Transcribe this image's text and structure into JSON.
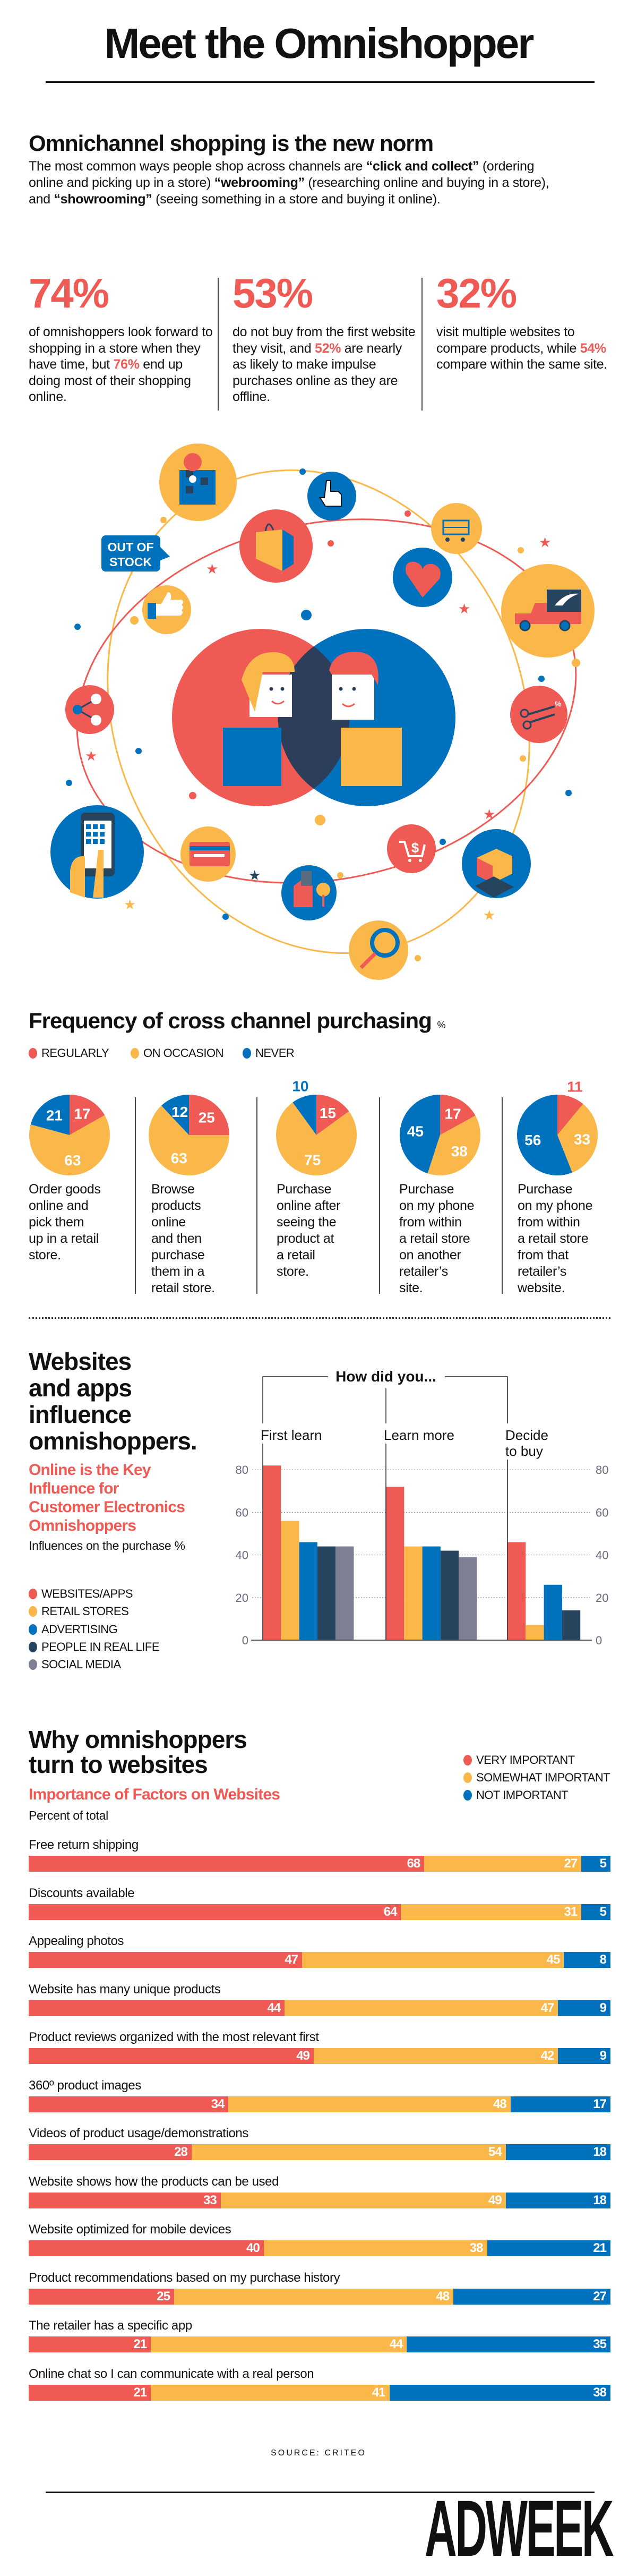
{
  "header": {
    "title": "Meet the Omnishopper",
    "logo": "ADWEEK",
    "source": "SOURCE: CRITEO"
  },
  "colors": {
    "red": "#ef5a55",
    "yellow": "#fbb84a",
    "blue": "#0071bc",
    "navy": "#27445f",
    "gray": "#7e7f92"
  },
  "intro": {
    "heading": "Omnichannel shopping is the new norm",
    "segments": [
      {
        "t": "The most common ways people shop across channels are ",
        "b": false
      },
      {
        "t": "“click and collect”",
        "b": true
      },
      {
        "t": " (ordering online and picking up in a store) ",
        "b": false
      },
      {
        "t": "“webrooming”",
        "b": true
      },
      {
        "t": " (researching online and buying in a store), and ",
        "b": false
      },
      {
        "t": "“showrooming”",
        "b": true
      },
      {
        "t": " (seeing something in a store and buying it online).",
        "b": false
      }
    ]
  },
  "stats": [
    {
      "number": "74%",
      "segments": [
        {
          "t": "of omnishoppers look forward to shopping in a store when they have time, but ",
          "hl": false
        },
        {
          "t": "76%",
          "hl": true
        },
        {
          "t": " end up doing most of their shopping online.",
          "hl": false
        }
      ]
    },
    {
      "number": "53%",
      "segments": [
        {
          "t": "do not buy from the first website they visit, and ",
          "hl": false
        },
        {
          "t": "52%",
          "hl": true
        },
        {
          "t": " are nearly as likely to make impulse purchases online as they are offline.",
          "hl": false
        }
      ]
    },
    {
      "number": "32%",
      "segments": [
        {
          "t": "visit multiple websites to compare products, while ",
          "hl": false
        },
        {
          "t": "54%",
          "hl": true
        },
        {
          "t": " compare within the same site.",
          "hl": false
        }
      ]
    }
  ],
  "illustration": {
    "bubble_line1": "OUT OF",
    "bubble_line2": "STOCK",
    "icons": [
      "map-pin-icon",
      "pointer-hand-icon",
      "shopping-bag-icon",
      "shopping-cart-icon",
      "heart-icon",
      "delivery-truck-icon",
      "thumbs-up-icon",
      "share-icon",
      "coupon-scissors-icon",
      "smartphone-icon",
      "credit-card-icon",
      "store-building-icon",
      "dollar-cart-icon",
      "box-cart-icon",
      "magnifier-icon"
    ]
  },
  "chart_data": [
    {
      "type": "pie",
      "title": "Frequency of cross channel purchasing",
      "unit": "%",
      "series": [
        {
          "name": "REGULARLY",
          "color": "#ef5a55"
        },
        {
          "name": "ON OCCASION",
          "color": "#fbb84a"
        },
        {
          "name": "NEVER",
          "color": "#0071bc"
        }
      ],
      "pies": [
        {
          "caption": "Order goods\nonline and\npick them\nup in a retail\nstore.",
          "values": [
            17,
            63,
            21
          ]
        },
        {
          "caption": "Browse\nproducts\nonline\nand then\npurchase\nthem in a\nretail store.",
          "values": [
            25,
            63,
            12
          ]
        },
        {
          "caption": "Purchase\nonline after\nseeing the\nproduct at\na retail\nstore.",
          "values": [
            15,
            75,
            10
          ]
        },
        {
          "caption": "Purchase\non my phone\nfrom within\na retail store\non another\nretailer’s\nsite.",
          "values": [
            17,
            38,
            45
          ]
        },
        {
          "caption": "Purchase\non my phone\nfrom within\na retail store\nfrom that\nretailer’s\nwebsite.",
          "values": [
            11,
            33,
            56
          ]
        }
      ]
    },
    {
      "type": "bar",
      "title": "Websites\nand apps\ninfluence\nomnishoppers.",
      "subtitle": "Online is the Key\nInfluence for\nCustomer Electronics\nOmnishoppers",
      "ylabel": "Influences on the purchase %",
      "group_title": "How did you...",
      "categories": [
        "First learn",
        "Learn more",
        "Decide\nto buy"
      ],
      "yticks": [
        0,
        20,
        40,
        60,
        80
      ],
      "ylim": [
        0,
        90
      ],
      "grid": true,
      "series": [
        {
          "name": "WEBSITES/APPS",
          "color": "#ef5a55",
          "values": [
            82,
            72,
            46
          ]
        },
        {
          "name": "RETAIL STORES",
          "color": "#fbb84a",
          "values": [
            56,
            44,
            7
          ]
        },
        {
          "name": "ADVERTISING",
          "color": "#0071bc",
          "values": [
            46,
            44,
            26
          ]
        },
        {
          "name": "PEOPLE IN REAL LIFE",
          "color": "#27445f",
          "values": [
            44,
            42,
            14
          ]
        },
        {
          "name": "SOCIAL MEDIA",
          "color": "#7e7f92",
          "values": [
            44,
            39,
            null
          ]
        }
      ]
    },
    {
      "type": "bar",
      "orientation": "horizontal-stacked",
      "title": "Why omnishoppers\nturn to websites",
      "subtitle": "Importance of Factors on Websites",
      "note": "Percent of total",
      "xlim": [
        0,
        100
      ],
      "series": [
        {
          "name": "VERY IMPORTANT",
          "color": "#ef5a55"
        },
        {
          "name": "SOMEWHAT IMPORTANT",
          "color": "#fbb84a"
        },
        {
          "name": "NOT IMPORTANT",
          "color": "#0071bc"
        }
      ],
      "rows": [
        {
          "label": "Free return shipping",
          "values": [
            68,
            27,
            5
          ]
        },
        {
          "label": "Discounts available",
          "values": [
            64,
            31,
            5
          ]
        },
        {
          "label": "Appealing photos",
          "values": [
            47,
            45,
            8
          ]
        },
        {
          "label": "Website has many unique products",
          "values": [
            44,
            47,
            9
          ]
        },
        {
          "label": "Product reviews organized with the most relevant first",
          "values": [
            49,
            42,
            9
          ]
        },
        {
          "label": "360º product images",
          "values": [
            34,
            48,
            17
          ]
        },
        {
          "label": "Videos of product usage/demonstrations",
          "values": [
            28,
            54,
            18
          ]
        },
        {
          "label": "Website shows how the products can be used",
          "values": [
            33,
            49,
            18
          ]
        },
        {
          "label": "Website optimized for mobile devices",
          "values": [
            40,
            38,
            21
          ]
        },
        {
          "label": "Product recommendations based on my purchase history",
          "values": [
            25,
            48,
            27
          ]
        },
        {
          "label": "The retailer has a specific app",
          "values": [
            21,
            44,
            35
          ]
        },
        {
          "label": "Online chat so I can communicate with a real person",
          "values": [
            21,
            41,
            38
          ]
        }
      ]
    }
  ]
}
